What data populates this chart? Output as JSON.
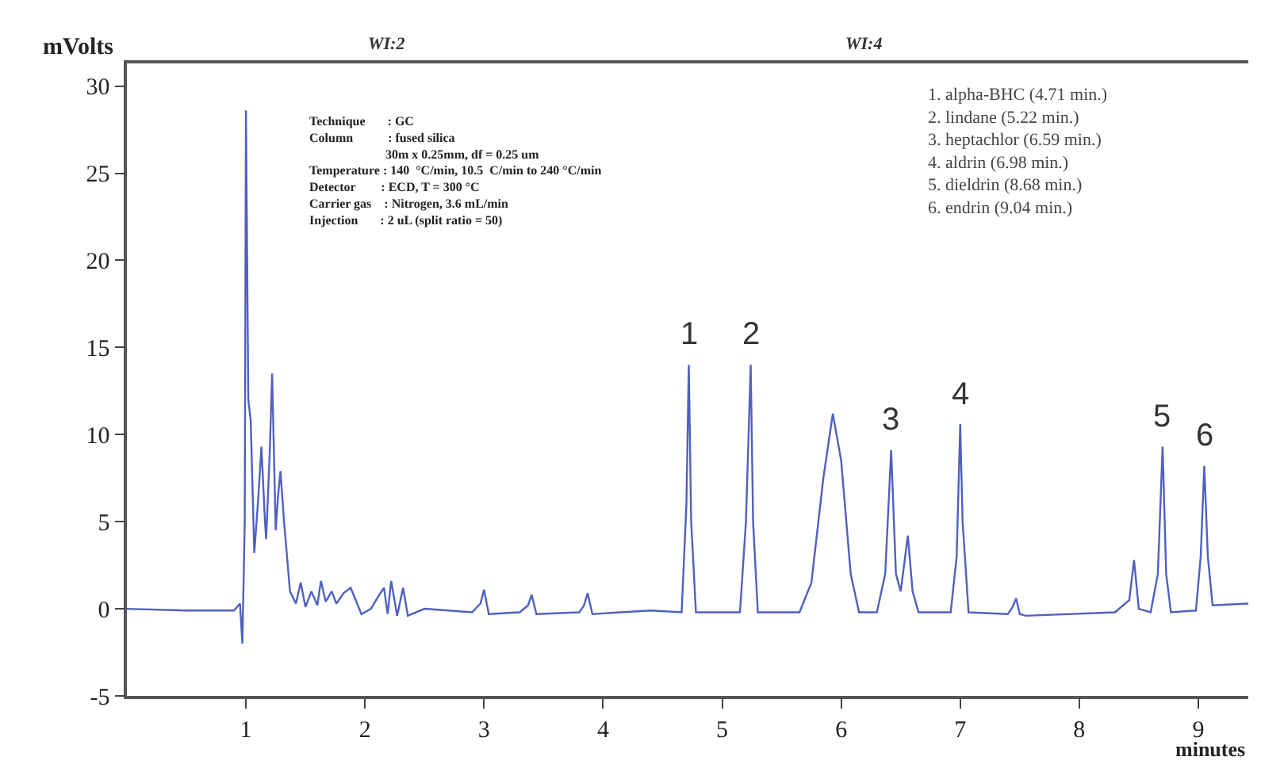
{
  "chart_data": {
    "type": "line",
    "xlabel": "minutes",
    "ylabel": "mVolts",
    "xlim": [
      0,
      9.42
    ],
    "ylim": [
      -5,
      31.3
    ],
    "xticks": [
      1,
      2,
      3,
      4,
      5,
      6,
      7,
      8,
      9
    ],
    "yticks": [
      -5,
      0,
      5,
      10,
      15,
      20,
      25,
      30
    ],
    "marker": "none",
    "line_style": "solid",
    "series": [
      {
        "color": "#5060c0",
        "x": [
          0,
          0.5,
          0.9,
          0.95,
          0.97,
          0.99,
          1.0,
          1.02,
          1.04,
          1.07,
          1.1,
          1.13,
          1.16,
          1.17,
          1.2,
          1.22,
          1.25,
          1.27,
          1.29,
          1.32,
          1.37,
          1.42,
          1.46,
          1.5,
          1.55,
          1.6,
          1.63,
          1.67,
          1.72,
          1.76,
          1.82,
          1.88,
          1.94,
          1.97,
          2.05,
          2.12,
          2.16,
          2.19,
          2.22,
          2.27,
          2.32,
          2.36,
          2.5,
          2.9,
          2.97,
          3.0,
          3.04,
          3.3,
          3.37,
          3.4,
          3.44,
          3.8,
          3.84,
          3.87,
          3.91,
          4.4,
          4.66,
          4.7,
          4.72,
          4.74,
          4.78,
          5.15,
          5.2,
          5.24,
          5.26,
          5.3,
          5.65,
          5.75,
          5.85,
          5.93,
          6.0,
          6.08,
          6.15,
          6.3,
          6.37,
          6.42,
          6.46,
          6.5,
          6.56,
          6.6,
          6.65,
          6.92,
          6.97,
          7.0,
          7.02,
          7.07,
          7.4,
          7.44,
          7.47,
          7.5,
          7.55,
          8.3,
          8.42,
          8.46,
          8.5,
          8.6,
          8.66,
          8.7,
          8.73,
          8.77,
          8.98,
          9.02,
          9.05,
          9.08,
          9.12,
          9.42
        ],
        "values": [
          0,
          -0.1,
          -0.1,
          0.3,
          -2.0,
          5.0,
          28.6,
          12.0,
          10.8,
          3.2,
          6.0,
          9.3,
          5.0,
          4.0,
          9.0,
          13.5,
          4.5,
          6.5,
          7.9,
          5.0,
          1.0,
          0.3,
          1.5,
          0.1,
          1.0,
          0.2,
          1.6,
          0.4,
          1.0,
          0.3,
          0.9,
          1.2,
          0.2,
          -0.3,
          0.0,
          0.8,
          1.2,
          -0.3,
          1.6,
          -0.4,
          1.2,
          -0.4,
          0.0,
          -0.2,
          0.3,
          1.1,
          -0.3,
          -0.2,
          0.2,
          0.8,
          -0.3,
          -0.2,
          0.2,
          0.9,
          -0.3,
          -0.1,
          -0.2,
          6.0,
          14.0,
          5.0,
          -0.2,
          -0.2,
          5.0,
          14.0,
          5.0,
          -0.2,
          -0.2,
          1.5,
          7.5,
          11.2,
          8.5,
          2.0,
          -0.2,
          -0.2,
          2.0,
          9.1,
          2.0,
          1.0,
          4.2,
          1.0,
          -0.2,
          -0.2,
          3.0,
          10.6,
          5.0,
          -0.2,
          -0.3,
          0.1,
          0.6,
          -0.3,
          -0.4,
          -0.2,
          0.5,
          2.8,
          0.0,
          -0.2,
          2.0,
          9.3,
          2.0,
          -0.2,
          -0.1,
          3.0,
          8.2,
          3.0,
          0.2,
          0.3
        ]
      }
    ],
    "annotations": [
      "Technique       : GC\nColumn           : fused silica\n                        30m x 0.25mm, df = 0.25 um\nTemperature : 140  °C/min, 10.5  C/min to 240 °C/min\nDetector        : ECD, T = 300 °C\nCarrier gas    : Nitrogen, 3.6 mL/min\nInjection       : 2 uL (split ratio = 50)",
      "1. alpha-BHC (4.71 min.)\n2. lindane (5.22 min.)\n3. heptachlor (6.59 min.)\n4. aldrin (6.98 min.)\n5. dieldrin (8.68 min.)\n6. endrin (9.04 min.)",
      "WI:2",
      "WI:4",
      {
        "text": "1",
        "x": 4.72,
        "y": 14.0
      },
      {
        "text": "2",
        "x": 5.24,
        "y": 14.0
      },
      {
        "text": "3",
        "x": 6.42,
        "y": 9.1
      },
      {
        "text": "4",
        "x": 7.0,
        "y": 10.6
      },
      {
        "text": "5",
        "x": 8.7,
        "y": 9.3
      },
      {
        "text": "6",
        "x": 9.05,
        "y": 8.2
      }
    ]
  }
}
